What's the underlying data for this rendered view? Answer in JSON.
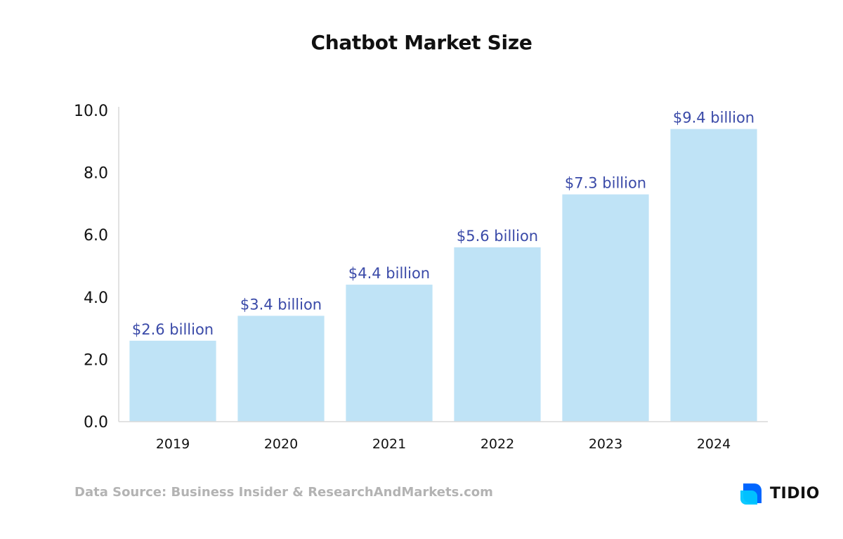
{
  "chart_data": {
    "type": "bar",
    "title": "Chatbot Market Size",
    "categories": [
      "2019",
      "2020",
      "2021",
      "2022",
      "2023",
      "2024"
    ],
    "values": [
      2.6,
      3.4,
      4.4,
      5.6,
      7.3,
      9.4
    ],
    "data_labels": [
      "$2.6 billion",
      "$3.4 billion",
      "$4.4 billion",
      "$5.6 billion",
      "$7.3 billion",
      "$9.4 billion"
    ],
    "yticks": [
      "0.0",
      "2.0",
      "4.0",
      "6.0",
      "8.0",
      "10.0"
    ],
    "ylim": [
      0,
      10
    ],
    "xlabel": "",
    "ylabel": "",
    "grid": false,
    "bar_color": "#bfe3f6",
    "label_color": "#3a4aa8"
  },
  "source_note": "Data Source: Business Insider & ResearchAndMarkets.com",
  "brand": {
    "name": "TIDIO",
    "icon": "tidio-logo-icon"
  }
}
